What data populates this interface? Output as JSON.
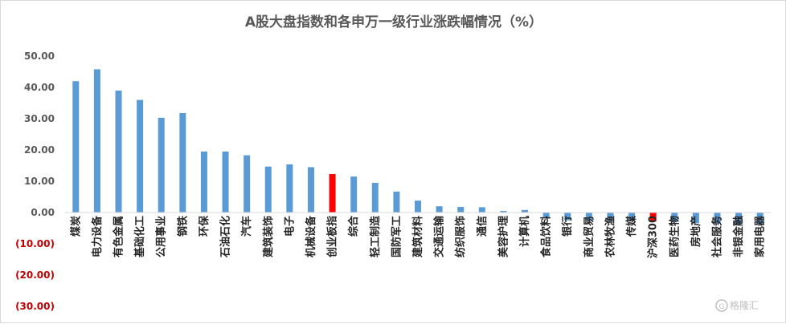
{
  "chart_data": {
    "type": "bar",
    "title": "A股大盘指数和各申万一级行业涨跌幅情况（%）",
    "xlabel": "",
    "ylabel": "",
    "ylim": [
      -30,
      50
    ],
    "y_ticks": [
      "50.00",
      "40.00",
      "30.00",
      "20.00",
      "10.00",
      "0.00",
      "(10.00)",
      "(20.00)",
      "(30.00)"
    ],
    "grid": false,
    "legend": "none",
    "categories": [
      "煤炭",
      "电力设备",
      "有色金属",
      "基础化工",
      "公用事业",
      "钢铁",
      "环保",
      "石油石化",
      "汽车",
      "建筑装饰",
      "电子",
      "机械设备",
      "创业板指",
      "综合",
      "轻工制造",
      "国防军工",
      "建筑材料",
      "交通运输",
      "纺织服饰",
      "通信",
      "美容护理",
      "计算机",
      "食品饮料",
      "银行",
      "商业贸易",
      "农林牧渔",
      "传媒",
      "沪深300",
      "医药生物",
      "房地产",
      "社会服务",
      "非银金融",
      "家用电器"
    ],
    "values": [
      42.0,
      45.8,
      39.0,
      36.0,
      30.3,
      31.8,
      19.5,
      19.5,
      18.3,
      14.7,
      15.4,
      14.5,
      12.3,
      11.5,
      9.5,
      6.7,
      3.8,
      2.0,
      1.8,
      1.7,
      0.5,
      0.8,
      -1.9,
      -2.5,
      -2.6,
      -2.7,
      -2.8,
      -2.9,
      -3.0,
      -3.4,
      -3.6,
      -3.8,
      -4.0
    ],
    "highlight_categories": [
      "创业板指",
      "沪深300"
    ],
    "colors": {
      "bar": "#5b9bd5",
      "highlight_bar": "#ff0000",
      "tick_text": "#595959",
      "negative_tick_text": "#c00000",
      "axis": "#d9d9d9"
    }
  },
  "watermark": "格隆汇",
  "watermark_icon": "gelonghui-logo-icon"
}
